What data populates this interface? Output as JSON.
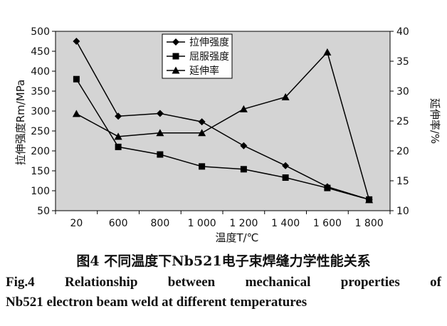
{
  "chart_data": {
    "type": "line",
    "xlabel": "温度T/℃",
    "ylabel_left": "拉伸强度Rm/MPa",
    "ylabel_right": "延伸率/%",
    "categories": [
      "20",
      "600",
      "800",
      "1 000",
      "1 200",
      "1 400",
      "1 600",
      "1 800"
    ],
    "y_left": {
      "min": 50,
      "max": 500,
      "ticks": [
        "50",
        "100",
        "150",
        "200",
        "250",
        "300",
        "350",
        "400",
        "450",
        "500"
      ]
    },
    "y_right": {
      "min": 10,
      "max": 40,
      "ticks": [
        "10",
        "15",
        "20",
        "25",
        "30",
        "35",
        "40"
      ]
    },
    "legend_position": "top-center",
    "series": [
      {
        "name": "拉伸强度",
        "axis": "left",
        "marker": "diamond",
        "values": [
          475,
          287,
          294,
          273,
          213,
          163,
          110,
          78
        ]
      },
      {
        "name": "屈服强度",
        "axis": "left",
        "marker": "square",
        "values": [
          380,
          210,
          191,
          161,
          154,
          133,
          107,
          78
        ]
      },
      {
        "name": "延伸率",
        "axis": "right",
        "marker": "triangle",
        "values": [
          26.2,
          22.4,
          23.0,
          23.0,
          27.0,
          29.0,
          36.5,
          11.8
        ]
      }
    ],
    "plot_background": "#d4d4d4",
    "line_color": "#000000",
    "grid": false
  },
  "caption": {
    "cn": "图4  不同温度下Nb521电子束焊缝力学性能关系",
    "en_line1": "Fig.4  Relationship between mechanical properties of",
    "en_line2": "Nb521 electron beam weld at different temperatures"
  }
}
